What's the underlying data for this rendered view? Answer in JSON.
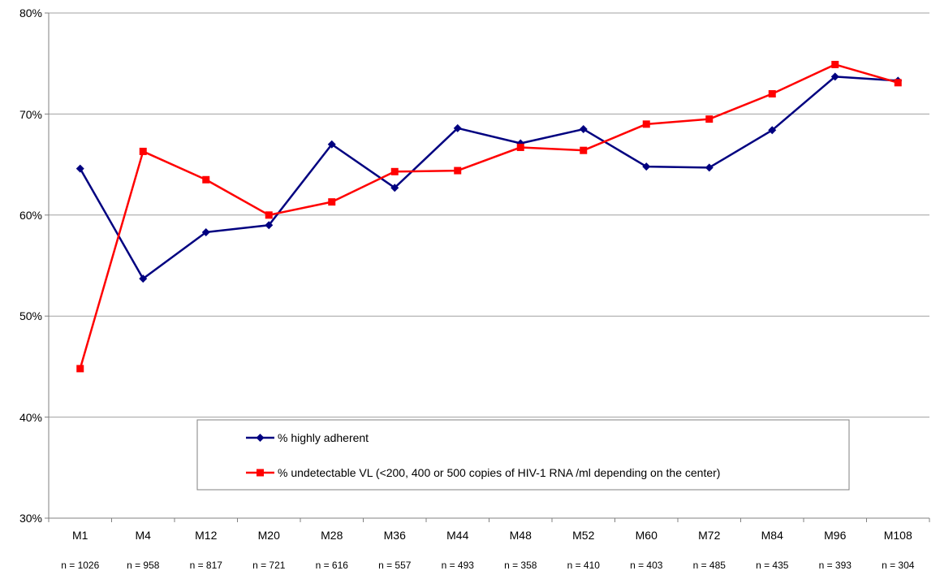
{
  "chart_data": {
    "type": "line",
    "categories": [
      "M1",
      "M4",
      "M12",
      "M20",
      "M28",
      "M36",
      "M44",
      "M48",
      "M52",
      "M60",
      "M72",
      "M84",
      "M96",
      "M108"
    ],
    "sample_sizes": [
      "n = 1026",
      "n = 958",
      "n = 817",
      "n = 721",
      "n = 616",
      "n = 557",
      "n = 493",
      "n = 358",
      "n = 410",
      "n = 403",
      "n = 485",
      "n = 435",
      "n = 393",
      "n = 304"
    ],
    "y_ticks": [
      "30%",
      "40%",
      "50%",
      "60%",
      "70%",
      "80%"
    ],
    "ylim": [
      30,
      80
    ],
    "grid": true,
    "legend_position": "bottom-center",
    "series": [
      {
        "name": "% highly adherent",
        "color": "#000080",
        "marker": "diamond",
        "values": [
          64.6,
          53.7,
          58.3,
          59.0,
          67.0,
          62.7,
          68.6,
          67.1,
          68.5,
          64.8,
          64.7,
          68.4,
          73.7,
          73.3
        ]
      },
      {
        "name": "% undetectable VL (<200, 400 or 500 copies of HIV-1 RNA /ml depending on the center)",
        "color": "#ff0000",
        "marker": "square",
        "values": [
          44.8,
          66.3,
          63.5,
          60.0,
          61.3,
          64.3,
          64.4,
          66.7,
          66.4,
          69.0,
          69.5,
          72.0,
          74.9,
          73.1
        ]
      }
    ]
  }
}
